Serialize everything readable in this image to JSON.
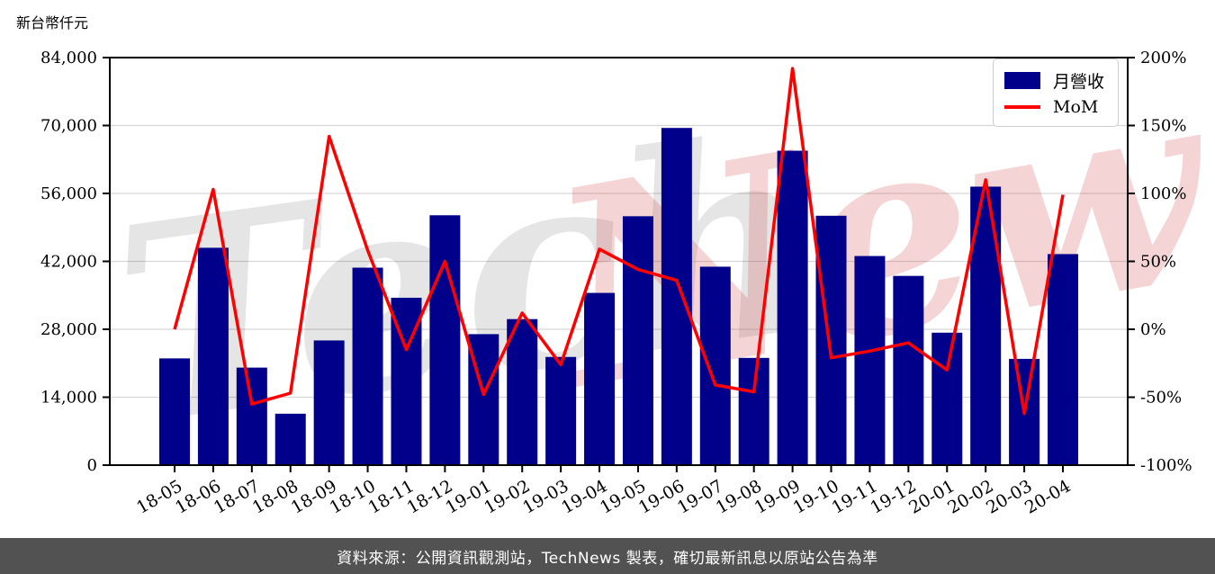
{
  "unit_label": "新台幣仟元",
  "legend": {
    "items": [
      {
        "label": "月營收",
        "type": "bar",
        "color": "#00008B"
      },
      {
        "label": "MoM",
        "type": "line",
        "color": "#ff0000"
      }
    ]
  },
  "watermark": {
    "part1": "Tech",
    "part2": "News",
    "part1_color": "rgba(0,0,0,0.10)",
    "part2_color": "rgba(213,90,90,0.26)"
  },
  "source_bar": {
    "text": "資料來源：公開資訊觀測站，TechNews 製表，確切最新訊息以原站公告為準",
    "background": "#525252",
    "text_color": "#ffffff"
  },
  "chart_data": {
    "type": "bar+line",
    "title": "",
    "categories": [
      "18-05",
      "18-06",
      "18-07",
      "18-08",
      "18-09",
      "18-10",
      "18-11",
      "18-12",
      "19-01",
      "19-02",
      "19-03",
      "19-04",
      "19-05",
      "19-06",
      "19-07",
      "19-08",
      "19-09",
      "19-10",
      "19-11",
      "19-12",
      "20-01",
      "20-02",
      "20-03",
      "20-04"
    ],
    "series": [
      {
        "name": "月營收",
        "type": "bar",
        "axis": "left",
        "unit": "新台幣仟元",
        "color": "#00008B",
        "values": [
          22000,
          44800,
          20100,
          10600,
          25700,
          40700,
          34500,
          51500,
          27000,
          30100,
          22300,
          35500,
          51300,
          69500,
          40900,
          22100,
          64800,
          51400,
          43100,
          39000,
          27300,
          57400,
          21900,
          43500
        ]
      },
      {
        "name": "MoM",
        "type": "line",
        "axis": "right",
        "unit": "%",
        "color": "#ff0000",
        "values": [
          0,
          103,
          -55,
          -47,
          142,
          58,
          -15,
          50,
          -48,
          12,
          -26,
          59,
          44,
          36,
          -41,
          -46,
          192,
          -21,
          -16,
          -10,
          -30,
          110,
          -62,
          99
        ]
      }
    ],
    "left_axis": {
      "min": 0,
      "max": 84000,
      "tick_step": 14000,
      "tick_labels": [
        "0",
        "14,000",
        "28,000",
        "42,000",
        "56,000",
        "70,000",
        "84,000"
      ]
    },
    "right_axis": {
      "min": -100,
      "max": 200,
      "tick_step": 50,
      "tick_labels": [
        "-100%",
        "-50%",
        "0%",
        "50%",
        "100%",
        "150%",
        "200%"
      ]
    },
    "grid": "horizontal",
    "grid_color": "#d6d6d6",
    "legend_position": "top-right"
  }
}
